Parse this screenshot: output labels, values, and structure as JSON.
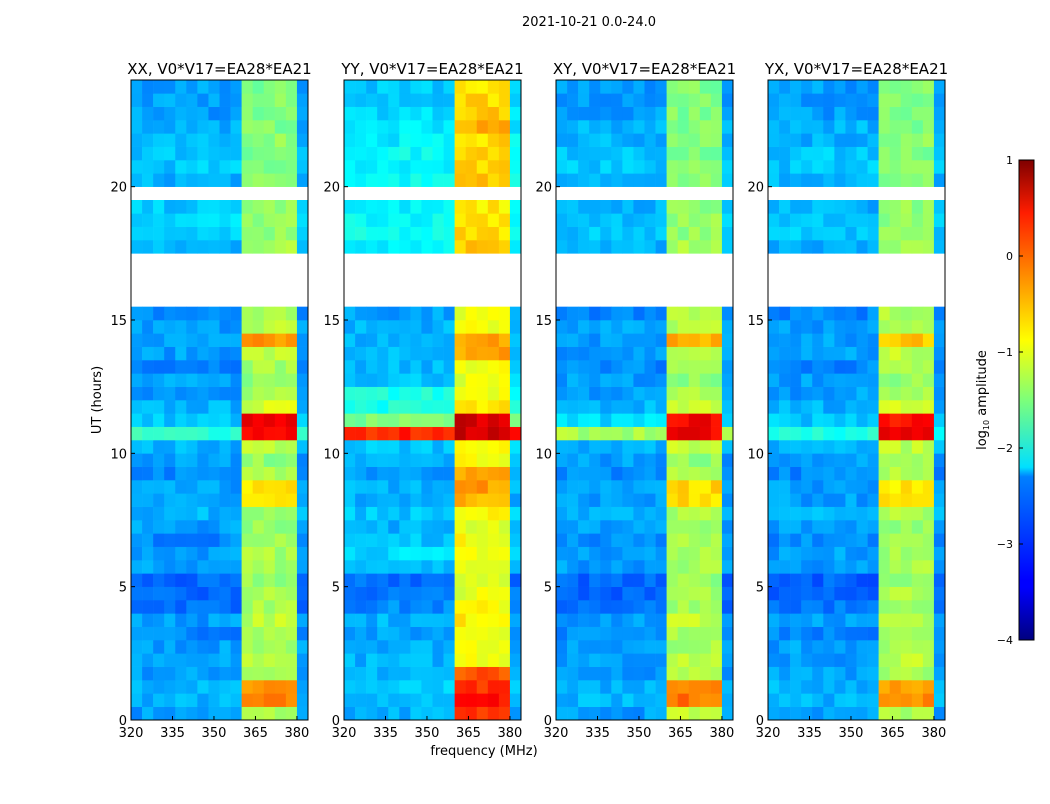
{
  "chart_data": {
    "type": "heatmap",
    "title": "2021-10-21 0.0-24.0",
    "xlabel": "frequency (MHz)",
    "ylabel": "UT (hours)",
    "xlim": [
      320,
      384
    ],
    "ylim": [
      0,
      24
    ],
    "xticks": [
      "320",
      "335",
      "350",
      "365",
      "380"
    ],
    "xtick_values": [
      320,
      335,
      350,
      365,
      380
    ],
    "yticks": [
      "0",
      "5",
      "10",
      "15",
      "20"
    ],
    "ytick_values": [
      0,
      5,
      10,
      15,
      20
    ],
    "freq_bins_mhz": [
      320,
      324,
      328,
      332,
      336,
      340,
      344,
      348,
      352,
      356,
      360,
      364,
      368,
      372,
      376,
      380
    ],
    "band_channels": [
      10,
      11,
      12,
      13,
      14
    ],
    "time_bin_hours": 0.5,
    "flagged_time_bins": [
      31,
      32,
      33,
      34,
      39
    ],
    "colorbar": {
      "label": "log10 amplitude",
      "label_main": "log",
      "label_sub": "10",
      "label_rest": " amplitude",
      "range": [
        -4,
        1
      ],
      "ticks": [
        "1",
        "0",
        "−1",
        "−2",
        "−3",
        "−4"
      ],
      "tick_values": [
        1,
        0,
        -1,
        -2,
        -3,
        -4
      ],
      "colormap": "jet"
    },
    "panels": [
      {
        "title": "XX, V0*V17=EA28*EA21",
        "background": [
          -2.6,
          -2.5,
          -2.5,
          -2.6,
          -2.6,
          -2.6,
          -2.7,
          -2.6,
          -2.8,
          -2.9,
          -2.9,
          -2.6,
          -2.6,
          -2.7,
          -2.6,
          -2.5,
          -2.6,
          -2.6,
          -2.7,
          -2.6,
          -2.5,
          -1.9,
          -2.4,
          -2.5,
          -2.6,
          -2.6,
          -2.7,
          -2.6,
          -2.6,
          -2.6,
          -2.7,
          -2.6,
          -2.6,
          -2.6,
          -2.6,
          -2.5,
          -2.3,
          -2.3,
          -2.4,
          -2.6,
          -2.5,
          -2.4,
          -2.4,
          -2.5,
          -2.5,
          -2.6,
          -2.6,
          -2.6
        ],
        "band": [
          -1.3,
          -0.3,
          -0.3,
          -1.3,
          -1.2,
          -1.3,
          -1.3,
          -1.2,
          -1.3,
          -1.3,
          -1.4,
          -1.3,
          -1.3,
          -1.3,
          -1.4,
          -1.3,
          -0.8,
          -0.8,
          -1.3,
          -1.4,
          -1.2,
          0.4,
          0.4,
          -1.1,
          -1.3,
          -1.4,
          -1.3,
          -1.2,
          -0.4,
          -1.2,
          -1.3,
          -1.3,
          -1.3,
          -1.3,
          -1.3,
          -1.3,
          -1.4,
          -1.4,
          -1.4,
          -1.4,
          -1.5,
          -1.5,
          -1.5,
          -1.4,
          -1.5,
          -1.5,
          -1.5,
          -1.5
        ]
      },
      {
        "title": "YY, V0*V17=EA28*EA21",
        "background": [
          -2.5,
          -2.4,
          -2.4,
          -2.5,
          -2.5,
          -2.5,
          -2.6,
          -2.5,
          -2.7,
          -2.8,
          -2.8,
          -2.5,
          -2.3,
          -2.4,
          -2.5,
          -2.4,
          -2.5,
          -2.5,
          -2.6,
          -2.5,
          -2.4,
          0.2,
          -1.5,
          -2.0,
          -2.0,
          -2.4,
          -2.5,
          -2.5,
          -2.5,
          -2.5,
          -2.6,
          -2.5,
          -2.5,
          -2.5,
          -2.5,
          -2.2,
          -2.1,
          -2.1,
          -2.2,
          -2.4,
          -2.1,
          -2.2,
          -2.1,
          -2.2,
          -2.2,
          -2.3,
          -2.4,
          -2.4
        ],
        "band": [
          0.1,
          0.3,
          0.1,
          0.0,
          -0.9,
          -0.9,
          -0.9,
          -0.8,
          -0.9,
          -1.0,
          -1.0,
          -0.9,
          -0.9,
          -0.9,
          -1.0,
          -0.9,
          -0.5,
          -0.4,
          -0.5,
          -0.9,
          -0.8,
          0.6,
          0.6,
          -0.8,
          -0.9,
          -1.0,
          -0.9,
          -0.4,
          -0.4,
          -0.9,
          -1.0,
          -1.0,
          -1.0,
          -1.0,
          -1.0,
          -0.6,
          -0.7,
          -0.7,
          -0.8,
          -1.0,
          -0.6,
          -0.7,
          -0.6,
          -0.7,
          -0.5,
          -0.6,
          -0.7,
          -0.8
        ]
      },
      {
        "title": "XY, V0*V17=EA28*EA21",
        "background": [
          -2.6,
          -2.5,
          -2.5,
          -2.6,
          -2.6,
          -2.6,
          -2.7,
          -2.6,
          -2.8,
          -2.9,
          -2.9,
          -2.6,
          -2.6,
          -2.7,
          -2.6,
          -2.5,
          -2.6,
          -2.6,
          -2.7,
          -2.6,
          -2.5,
          -1.3,
          -2.3,
          -2.5,
          -2.6,
          -2.6,
          -2.7,
          -2.6,
          -2.6,
          -2.6,
          -2.7,
          -2.6,
          -2.6,
          -2.6,
          -2.6,
          -2.5,
          -2.4,
          -2.4,
          -2.5,
          -2.6,
          -2.5,
          -2.4,
          -2.4,
          -2.5,
          -2.5,
          -2.6,
          -2.6,
          -2.6
        ],
        "band": [
          -1.2,
          -0.2,
          -0.2,
          -1.2,
          -1.2,
          -1.3,
          -1.3,
          -1.2,
          -1.3,
          -1.3,
          -1.4,
          -1.3,
          -1.3,
          -1.3,
          -1.4,
          -1.3,
          -0.7,
          -0.7,
          -1.3,
          -1.4,
          -1.2,
          0.4,
          0.4,
          -1.1,
          -1.3,
          -1.4,
          -1.3,
          -1.2,
          -0.5,
          -1.2,
          -1.3,
          -1.3,
          -1.3,
          -1.3,
          -1.3,
          -1.3,
          -1.4,
          -1.4,
          -1.4,
          -1.4,
          -1.5,
          -1.5,
          -1.5,
          -1.4,
          -1.5,
          -1.5,
          -1.5,
          -1.5
        ]
      },
      {
        "title": "YX, V0*V17=EA28*EA21",
        "background": [
          -2.6,
          -2.5,
          -2.5,
          -2.6,
          -2.6,
          -2.6,
          -2.7,
          -2.6,
          -2.8,
          -2.9,
          -2.9,
          -2.6,
          -2.6,
          -2.7,
          -2.6,
          -2.5,
          -2.6,
          -2.6,
          -2.7,
          -2.6,
          -2.5,
          -2.0,
          -2.4,
          -2.5,
          -2.6,
          -2.6,
          -2.7,
          -2.6,
          -2.6,
          -2.6,
          -2.7,
          -2.6,
          -2.6,
          -2.6,
          -2.6,
          -2.5,
          -2.4,
          -2.4,
          -2.5,
          -2.6,
          -2.5,
          -2.4,
          -2.4,
          -2.5,
          -2.5,
          -2.6,
          -2.6,
          -2.6
        ],
        "band": [
          -1.3,
          -0.3,
          -0.4,
          -1.3,
          -1.2,
          -1.3,
          -1.3,
          -1.2,
          -1.3,
          -1.3,
          -1.4,
          -1.3,
          -1.3,
          -1.3,
          -1.4,
          -1.3,
          -0.8,
          -0.8,
          -1.3,
          -1.4,
          -1.2,
          0.4,
          0.3,
          -1.1,
          -1.3,
          -1.4,
          -1.3,
          -1.2,
          -0.6,
          -1.2,
          -1.3,
          -1.3,
          -1.3,
          -1.3,
          -1.3,
          -1.3,
          -1.4,
          -1.4,
          -1.4,
          -1.4,
          -1.5,
          -1.5,
          -1.5,
          -1.4,
          -1.5,
          -1.5,
          -1.5,
          -1.5
        ]
      }
    ]
  }
}
